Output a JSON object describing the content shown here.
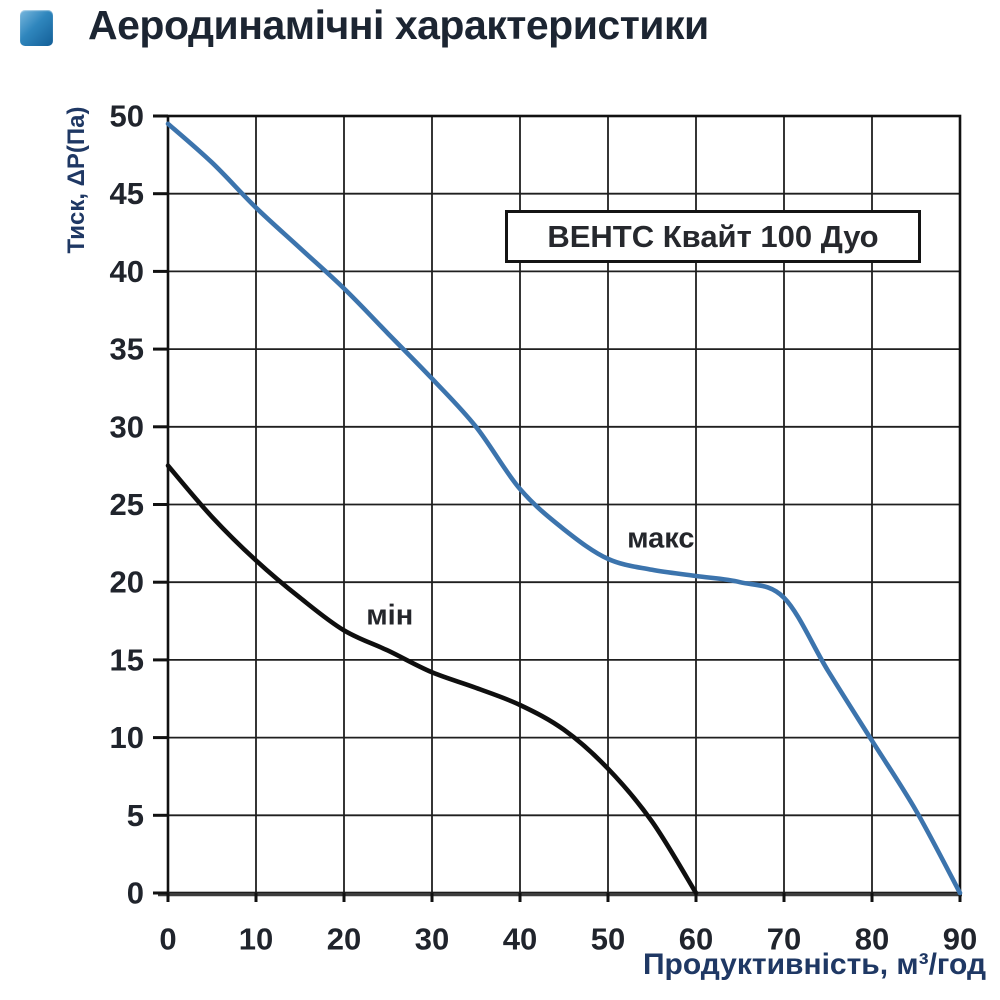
{
  "header": {
    "title": "Аеродинамічні характеристики"
  },
  "chart_data": {
    "type": "line",
    "title": "ВЕНТС Квайт 100 Дуо",
    "xlabel": "Продуктивність, м³/год",
    "ylabel": "Тиск, ΔР(Па)",
    "xlim": [
      0,
      90
    ],
    "ylim": [
      0,
      50
    ],
    "x_ticks": [
      0,
      10,
      20,
      30,
      40,
      50,
      60,
      70,
      80,
      90
    ],
    "y_ticks": [
      0,
      5,
      10,
      15,
      20,
      25,
      30,
      35,
      40,
      45,
      50
    ],
    "grid": "on",
    "legend_position": "upper-right-box",
    "series": [
      {
        "name": "макс",
        "color": "#3c74ad",
        "points": [
          [
            0,
            49.5
          ],
          [
            5,
            47
          ],
          [
            10,
            44.1
          ],
          [
            15,
            41.5
          ],
          [
            20,
            38.9
          ],
          [
            25,
            36
          ],
          [
            30,
            33.1
          ],
          [
            35,
            30
          ],
          [
            40,
            26
          ],
          [
            45,
            23.4
          ],
          [
            50,
            21.5
          ],
          [
            55,
            20.8
          ],
          [
            60,
            20.4
          ],
          [
            65,
            20
          ],
          [
            70,
            19
          ],
          [
            75,
            14.3
          ],
          [
            80,
            9.8
          ],
          [
            85,
            5.3
          ],
          [
            90,
            0
          ]
        ]
      },
      {
        "name": "мін",
        "color": "#0f0f0f",
        "points": [
          [
            0,
            27.5
          ],
          [
            5,
            24.2
          ],
          [
            10,
            21.4
          ],
          [
            15,
            19
          ],
          [
            20,
            16.9
          ],
          [
            25,
            15.6
          ],
          [
            30,
            14.2
          ],
          [
            35,
            13.2
          ],
          [
            40,
            12.1
          ],
          [
            45,
            10.5
          ],
          [
            50,
            8
          ],
          [
            55,
            4.6
          ],
          [
            60,
            0
          ]
        ]
      }
    ],
    "annotations": [
      {
        "id": "max",
        "text": "макс",
        "x": 56,
        "y": 22.8
      },
      {
        "id": "min",
        "text": "мін",
        "x": 25.2,
        "y": 17.8
      }
    ]
  },
  "colors": {
    "accent_blue": "#3c74ad",
    "curve_black": "#0f0f0f",
    "grid": "#1f1f1f",
    "frame": "#111111",
    "title_text": "#1c2532",
    "axis_title_text": "#1f3864",
    "tick_text": "#20242c"
  }
}
